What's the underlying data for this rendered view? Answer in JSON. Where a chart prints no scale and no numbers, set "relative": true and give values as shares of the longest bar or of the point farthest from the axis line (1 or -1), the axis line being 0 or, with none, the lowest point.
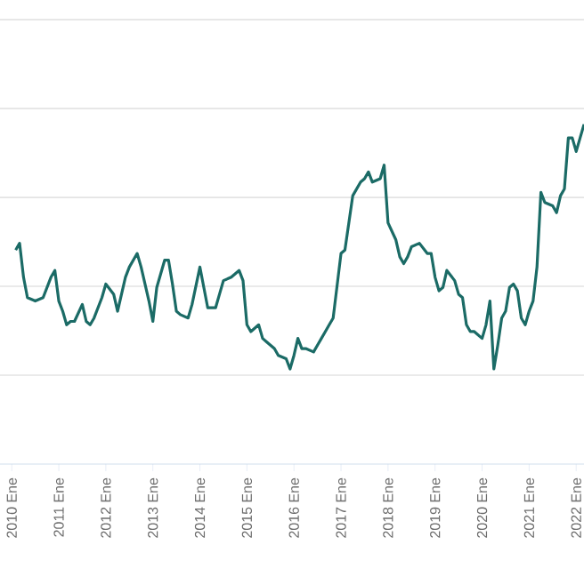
{
  "chart_data": {
    "type": "line",
    "relative": true,
    "grid": "y",
    "color": "#1b6b66",
    "xlim": [
      "2009-10",
      "2022-03"
    ],
    "xticks": [
      {
        "value": "2010-01",
        "label": "2010 Ene"
      },
      {
        "value": "2011-01",
        "label": "2011 Ene"
      },
      {
        "value": "2012-01",
        "label": "2012 Ene"
      },
      {
        "value": "2013-01",
        "label": "2013 Ene"
      },
      {
        "value": "2014-01",
        "label": "2014 Ene"
      },
      {
        "value": "2015-01",
        "label": "2015 Ene"
      },
      {
        "value": "2016-01",
        "label": "2016 Ene"
      },
      {
        "value": "2017-01",
        "label": "2017 Ene"
      },
      {
        "value": "2018-01",
        "label": "2018 Ene"
      },
      {
        "value": "2019-01",
        "label": "2019 Ene"
      },
      {
        "value": "2020-01",
        "label": "2020 Ene"
      },
      {
        "value": "2021-01",
        "label": "2021 Ene"
      },
      {
        "value": "2022-01",
        "label": "2022 Ene"
      }
    ],
    "x": [
      "2010-02",
      "2010-03",
      "2010-04",
      "2010-05",
      "2010-07",
      "2010-09",
      "2010-11",
      "2010-12",
      "2011-01",
      "2011-02",
      "2011-03",
      "2011-04",
      "2011-05",
      "2011-07",
      "2011-08",
      "2011-09",
      "2011-10",
      "2011-12",
      "2012-01",
      "2012-03",
      "2012-04",
      "2012-06",
      "2012-07",
      "2012-09",
      "2012-10",
      "2012-12",
      "2013-01",
      "2013-02",
      "2013-04",
      "2013-05",
      "2013-06",
      "2013-07",
      "2013-08",
      "2013-10",
      "2013-11",
      "2014-01",
      "2014-02",
      "2014-03",
      "2014-05",
      "2014-06",
      "2014-07",
      "2014-09",
      "2014-11",
      "2014-12",
      "2015-01",
      "2015-02",
      "2015-04",
      "2015-05",
      "2015-06",
      "2015-08",
      "2015-09",
      "2015-11",
      "2015-12",
      "2016-01",
      "2016-02",
      "2016-03",
      "2016-04",
      "2016-06",
      "2016-07",
      "2016-08",
      "2016-09",
      "2016-10",
      "2016-11",
      "2017-01",
      "2017-02",
      "2017-03",
      "2017-04",
      "2017-06",
      "2017-07",
      "2017-08",
      "2017-09",
      "2017-11",
      "2017-12",
      "2018-01",
      "2018-03",
      "2018-04",
      "2018-05",
      "2018-06",
      "2018-07",
      "2018-09",
      "2018-11",
      "2018-12",
      "2019-01",
      "2019-02",
      "2019-03",
      "2019-04",
      "2019-06",
      "2019-07",
      "2019-08",
      "2019-09",
      "2019-10",
      "2019-11",
      "2020-01",
      "2020-02",
      "2020-03",
      "2020-04",
      "2020-05",
      "2020-06",
      "2020-07",
      "2020-08",
      "2020-09",
      "2020-10",
      "2020-11",
      "2020-12",
      "2021-01",
      "2021-02",
      "2021-03",
      "2021-04",
      "2021-05",
      "2021-07",
      "2021-08",
      "2021-09",
      "2021-10",
      "2021-11",
      "2021-12",
      "2022-01",
      "2022-02",
      "2022-03"
    ],
    "values": [
      0.63,
      0.65,
      0.55,
      0.49,
      0.48,
      0.49,
      0.55,
      0.57,
      0.48,
      0.45,
      0.41,
      0.42,
      0.42,
      0.47,
      0.42,
      0.41,
      0.43,
      0.49,
      0.53,
      0.5,
      0.45,
      0.55,
      0.58,
      0.62,
      0.58,
      0.48,
      0.42,
      0.52,
      0.6,
      0.6,
      0.53,
      0.45,
      0.44,
      0.43,
      0.47,
      0.58,
      0.52,
      0.46,
      0.46,
      0.5,
      0.54,
      0.55,
      0.57,
      0.54,
      0.41,
      0.39,
      0.41,
      0.37,
      0.36,
      0.34,
      0.32,
      0.31,
      0.28,
      0.32,
      0.37,
      0.34,
      0.34,
      0.33,
      0.35,
      0.37,
      0.39,
      0.41,
      0.43,
      0.62,
      0.63,
      0.71,
      0.79,
      0.83,
      0.84,
      0.86,
      0.83,
      0.84,
      0.88,
      0.71,
      0.66,
      0.61,
      0.59,
      0.61,
      0.64,
      0.65,
      0.62,
      0.62,
      0.55,
      0.51,
      0.52,
      0.57,
      0.54,
      0.5,
      0.49,
      0.41,
      0.39,
      0.39,
      0.37,
      0.41,
      0.48,
      0.28,
      0.35,
      0.43,
      0.45,
      0.52,
      0.53,
      0.51,
      0.43,
      0.41,
      0.45,
      0.48,
      0.58,
      0.8,
      0.77,
      0.76,
      0.74,
      0.79,
      0.81,
      0.96,
      0.96,
      0.92,
      0.96,
      1.0
    ]
  }
}
